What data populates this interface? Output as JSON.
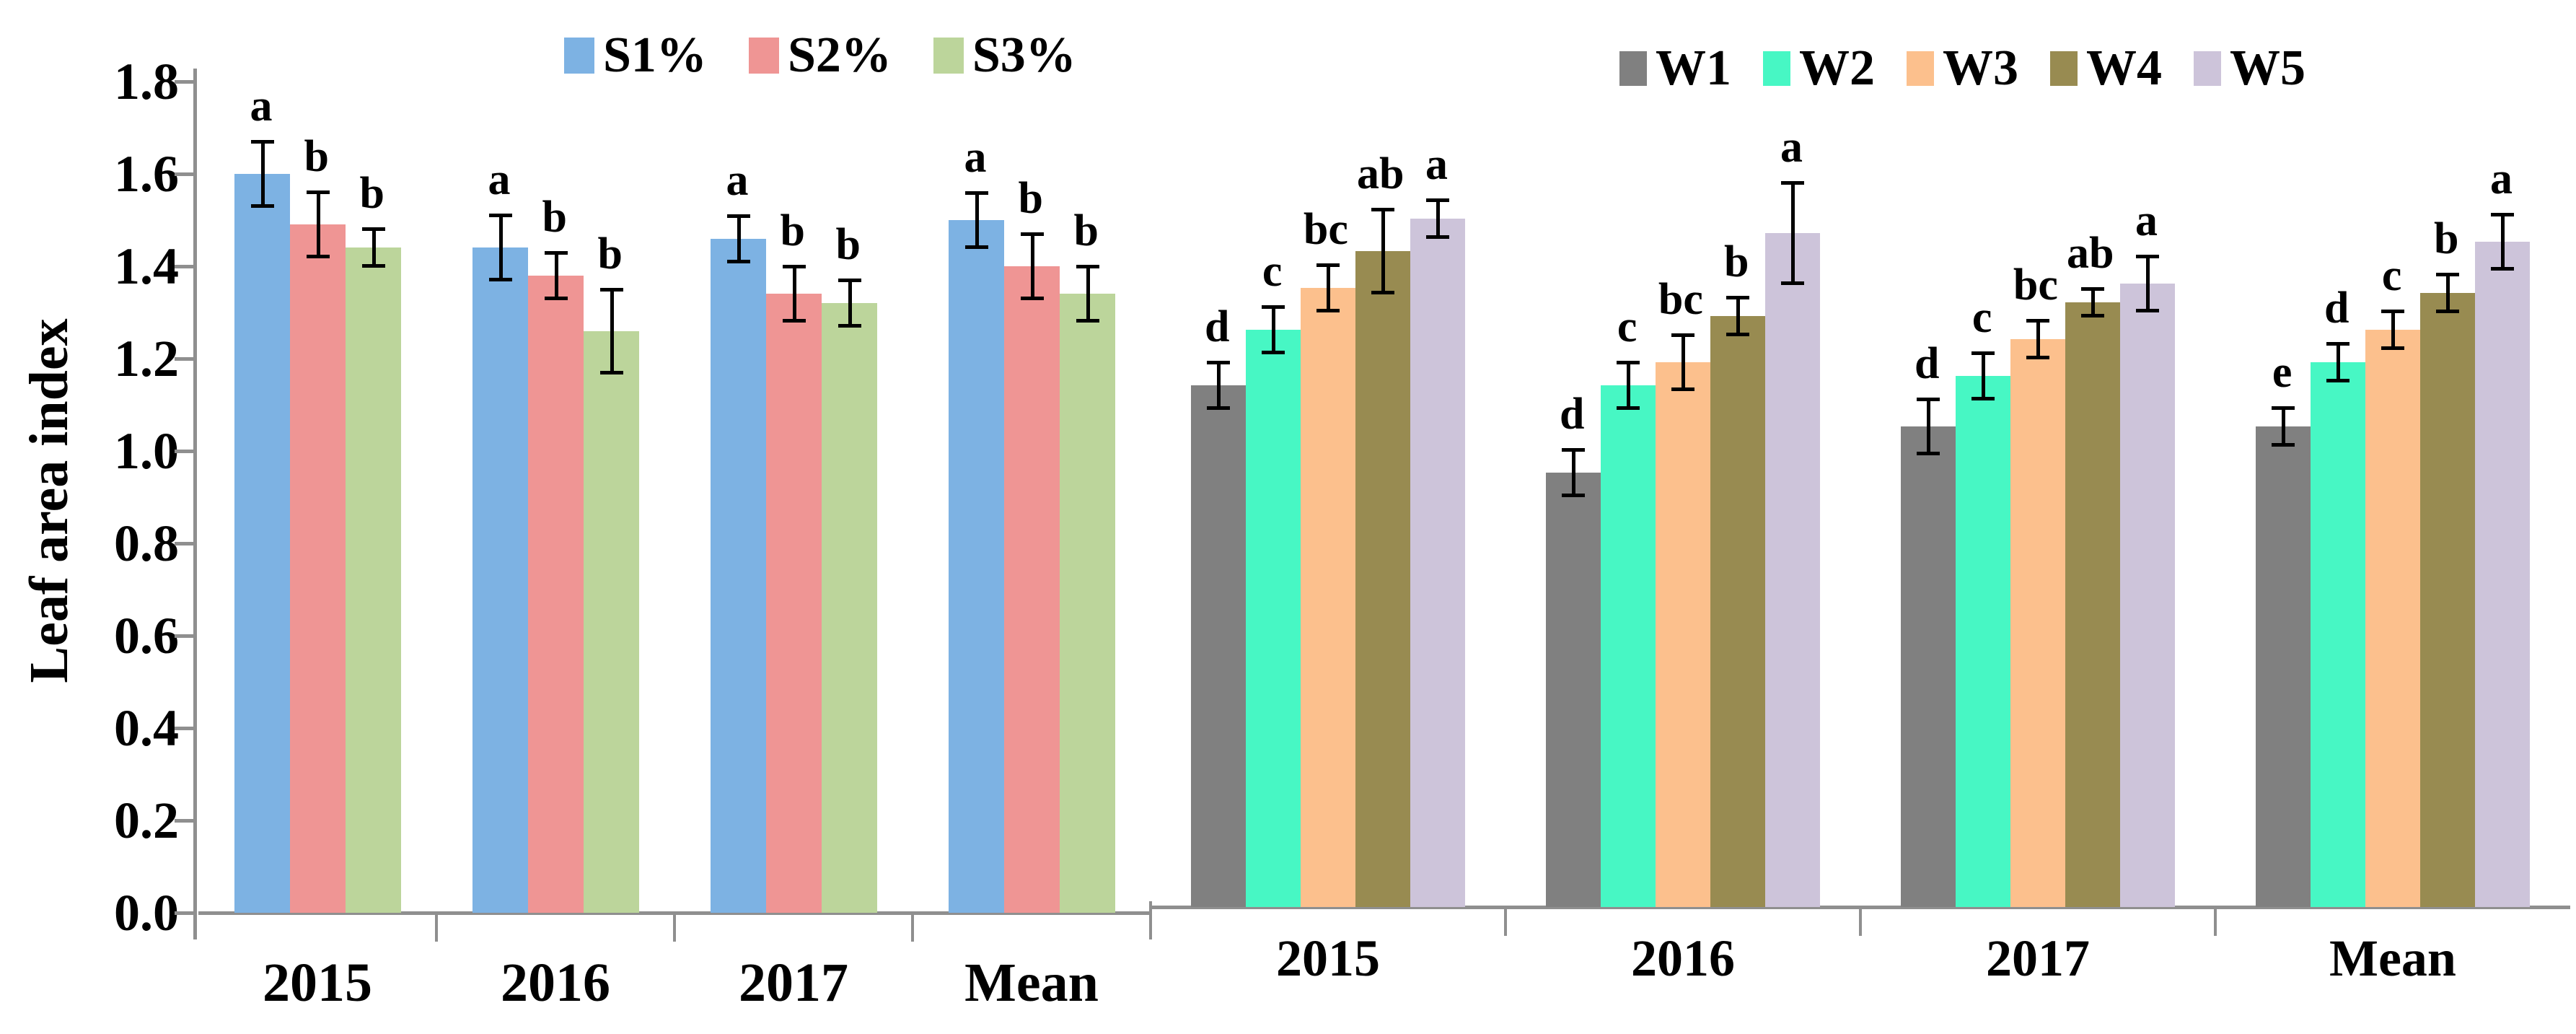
{
  "figure": {
    "ylabel": "Leaf area index",
    "y_ticks": [
      "0.0",
      "0.2",
      "0.4",
      "0.6",
      "0.8",
      "1.0",
      "1.2",
      "1.4",
      "1.6",
      "1.8"
    ]
  },
  "colors": {
    "axis": "#8F8F8F",
    "error_bar": "#000000",
    "S1": "#7DB2E3",
    "S2": "#EF9594",
    "S3": "#BCD59B",
    "W1": "#808080",
    "W2": "#47F7C4",
    "W3": "#FCC08D",
    "W4": "#988B51",
    "W5": "#CDC4DA"
  },
  "chart_data": [
    {
      "type": "bar",
      "panel": "left",
      "title": "",
      "xlabel": "",
      "ylabel": "Leaf area index",
      "ylim": [
        0,
        1.8
      ],
      "grid": false,
      "legend_position": "top",
      "categories": [
        "2015",
        "2016",
        "2017",
        "Mean"
      ],
      "series": [
        {
          "name": "S1%",
          "color": "#7DB2E3",
          "values": [
            1.6,
            1.44,
            1.46,
            1.5
          ],
          "errors": [
            0.07,
            0.07,
            0.05,
            0.06
          ],
          "letters": [
            "a",
            "a",
            "a",
            "a"
          ]
        },
        {
          "name": "S2%",
          "color": "#EF9594",
          "values": [
            1.49,
            1.38,
            1.34,
            1.4
          ],
          "errors": [
            0.07,
            0.05,
            0.06,
            0.07
          ],
          "letters": [
            "b",
            "b",
            "b",
            "b"
          ]
        },
        {
          "name": "S3%",
          "color": "#BCD59B",
          "values": [
            1.44,
            1.26,
            1.32,
            1.34
          ],
          "errors": [
            0.04,
            0.09,
            0.05,
            0.06
          ],
          "letters": [
            "b",
            "b",
            "b",
            "b"
          ]
        }
      ]
    },
    {
      "type": "bar",
      "panel": "right",
      "title": "",
      "xlabel": "",
      "ylabel": "Leaf area index",
      "ylim": [
        0,
        1.8
      ],
      "grid": false,
      "legend_position": "top",
      "categories": [
        "2015",
        "2016",
        "2017",
        "Mean"
      ],
      "series": [
        {
          "name": "W1",
          "color": "#808080",
          "values": [
            1.13,
            0.94,
            1.04,
            1.04
          ],
          "errors": [
            0.05,
            0.05,
            0.06,
            0.04
          ],
          "letters": [
            "d",
            "d",
            "d",
            "e"
          ]
        },
        {
          "name": "W2",
          "color": "#47F7C4",
          "values": [
            1.25,
            1.13,
            1.15,
            1.18
          ],
          "errors": [
            0.05,
            0.05,
            0.05,
            0.04
          ],
          "letters": [
            "c",
            "c",
            "c",
            "d"
          ]
        },
        {
          "name": "W3",
          "color": "#FCC08D",
          "values": [
            1.34,
            1.18,
            1.23,
            1.25
          ],
          "errors": [
            0.05,
            0.06,
            0.04,
            0.04
          ],
          "letters": [
            "bc",
            "bc",
            "bc",
            "c"
          ]
        },
        {
          "name": "W4",
          "color": "#988B51",
          "values": [
            1.42,
            1.28,
            1.31,
            1.33
          ],
          "errors": [
            0.09,
            0.04,
            0.03,
            0.04
          ],
          "letters": [
            "ab",
            "b",
            "ab",
            "b"
          ]
        },
        {
          "name": "W5",
          "color": "#CDC4DA",
          "values": [
            1.49,
            1.46,
            1.35,
            1.44
          ],
          "errors": [
            0.04,
            0.11,
            0.06,
            0.06
          ],
          "letters": [
            "a",
            "a",
            "a",
            "a"
          ]
        }
      ]
    }
  ]
}
